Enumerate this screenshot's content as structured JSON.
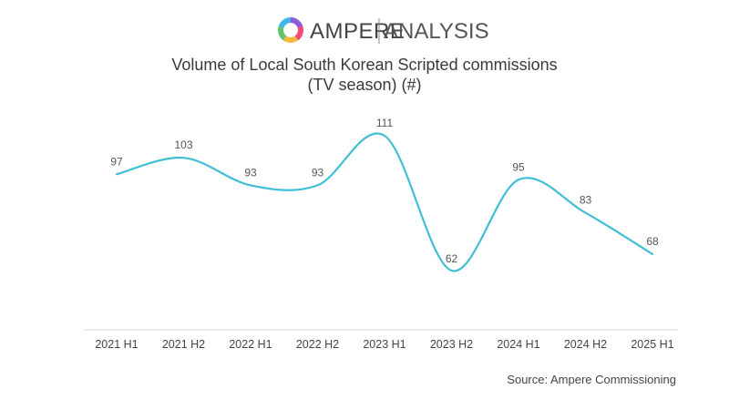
{
  "header": {
    "logo_primary": "AMPERE",
    "logo_secondary": "ANALYSIS"
  },
  "footer": {
    "source": "Source: Ampere Commissioning"
  },
  "colors": {
    "line": "#3fbfd6",
    "axis": "#d9d9d9",
    "logo_segments": [
      "#8e5bd9",
      "#ef4b75",
      "#f5b83d",
      "#63c36b",
      "#3fb6e8"
    ]
  },
  "chart_data": {
    "type": "line",
    "title": "Volume of Local South Korean Scripted commissions",
    "subtitle": "(TV season) (#)",
    "xlabel": "",
    "ylabel": "",
    "categories": [
      "2021 H1",
      "2021 H2",
      "2022 H1",
      "2022 H2",
      "2023 H1",
      "2023 H2",
      "2024 H1",
      "2024 H2",
      "2025 H1"
    ],
    "series": [
      {
        "values": [
          97,
          103,
          93,
          93,
          111,
          62,
          95,
          83,
          68
        ]
      }
    ],
    "grid": false,
    "legend": "none",
    "data_labels": true,
    "smooth": true
  }
}
